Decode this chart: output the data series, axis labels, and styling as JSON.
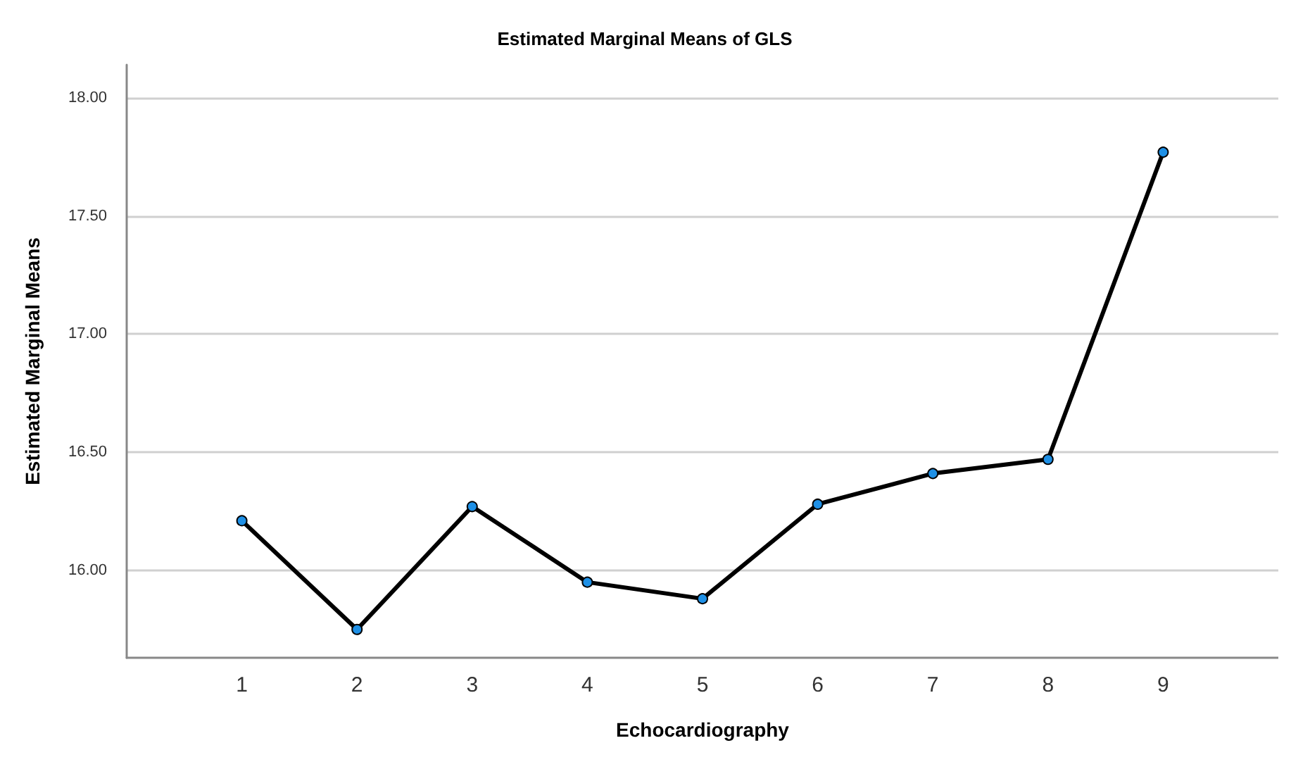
{
  "chart_data": {
    "type": "line",
    "title": "Estimated Marginal Means of GLS",
    "xlabel": "Echocardiography",
    "ylabel": "Estimated Marginal Means",
    "x": [
      1,
      2,
      3,
      4,
      5,
      6,
      7,
      8,
      9
    ],
    "series": [
      {
        "color": "#000000",
        "values": [
          16.21,
          15.75,
          16.27,
          15.95,
          15.88,
          16.28,
          16.41,
          16.47,
          17.77
        ]
      }
    ],
    "xlim": [
      0,
      10
    ],
    "xticks": [
      1,
      2,
      3,
      4,
      5,
      6,
      7,
      8,
      9
    ],
    "ylim": [
      15.63,
      18.14
    ],
    "yticks": [
      {
        "value": 16,
        "label": "16.00"
      },
      {
        "value": 16.5,
        "label": "16.50"
      },
      {
        "value": 17,
        "label": "17.00"
      },
      {
        "value": 17.5,
        "label": "17.50"
      },
      {
        "value": 18,
        "label": "18.00"
      }
    ],
    "grid": "y",
    "marker": "circle",
    "line_style": "solid"
  }
}
